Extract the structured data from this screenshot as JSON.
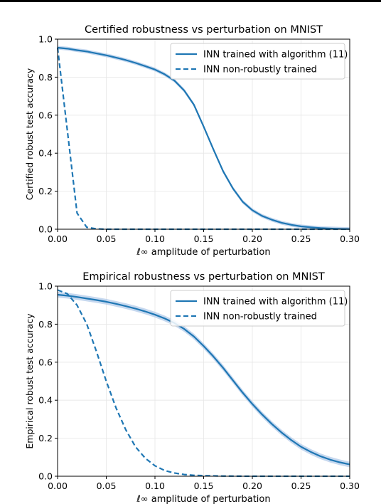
{
  "colors": {
    "line": "#1f77b4",
    "band": "#aec7e8",
    "grid": "#e6e6e6",
    "axis": "#000000"
  },
  "chart_data": [
    {
      "type": "line",
      "title": "Certified robustness vs perturbation on MNIST",
      "xlabel": "ℓ∞ amplitude of perturbation",
      "ylabel": "Certified robust test accuracy",
      "xlim": [
        0.0,
        0.3
      ],
      "ylim": [
        0.0,
        1.0
      ],
      "xticks": [
        "0.00",
        "0.05",
        "0.10",
        "0.15",
        "0.20",
        "0.25",
        "0.30"
      ],
      "yticks": [
        "0.0",
        "0.2",
        "0.4",
        "0.6",
        "0.8",
        "1.0"
      ],
      "grid": true,
      "legend_position": "top-right",
      "series": [
        {
          "name": "INN trained with algorithm (11)",
          "style": "solid",
          "band": 0.01,
          "x": [
            0.0,
            0.01,
            0.02,
            0.03,
            0.04,
            0.05,
            0.06,
            0.07,
            0.08,
            0.09,
            0.1,
            0.11,
            0.12,
            0.13,
            0.14,
            0.15,
            0.16,
            0.17,
            0.18,
            0.19,
            0.2,
            0.21,
            0.22,
            0.23,
            0.24,
            0.25,
            0.26,
            0.27,
            0.28,
            0.29,
            0.3
          ],
          "y": [
            0.955,
            0.95,
            0.942,
            0.935,
            0.925,
            0.915,
            0.903,
            0.89,
            0.875,
            0.858,
            0.84,
            0.815,
            0.782,
            0.73,
            0.655,
            0.54,
            0.42,
            0.305,
            0.215,
            0.145,
            0.1,
            0.07,
            0.05,
            0.034,
            0.023,
            0.015,
            0.01,
            0.006,
            0.004,
            0.002,
            0.001
          ]
        },
        {
          "name": "INN non-robustly trained",
          "style": "dashed",
          "x": [
            0.0,
            0.01,
            0.02,
            0.03,
            0.04,
            0.05,
            0.1,
            0.15,
            0.2,
            0.25,
            0.3
          ],
          "y": [
            0.955,
            0.52,
            0.085,
            0.01,
            0.002,
            0.0,
            0.0,
            0.0,
            0.0,
            0.0,
            0.0
          ]
        }
      ]
    },
    {
      "type": "line",
      "title": "Empirical robustness vs perturbation on MNIST",
      "xlabel": "ℓ∞ amplitude of perturbation",
      "ylabel": "Empirical robust test accuracy",
      "xlim": [
        0.0,
        0.3
      ],
      "ylim": [
        0.0,
        1.0
      ],
      "xticks": [
        "0.00",
        "0.05",
        "0.10",
        "0.15",
        "0.20",
        "0.25",
        "0.30"
      ],
      "yticks": [
        "0.0",
        "0.2",
        "0.4",
        "0.6",
        "0.8",
        "1.0"
      ],
      "grid": true,
      "legend_position": "top-right",
      "series": [
        {
          "name": "INN trained with algorithm (11)",
          "style": "solid",
          "band": 0.015,
          "x": [
            0.0,
            0.01,
            0.02,
            0.03,
            0.04,
            0.05,
            0.06,
            0.07,
            0.08,
            0.09,
            0.1,
            0.11,
            0.12,
            0.13,
            0.14,
            0.15,
            0.16,
            0.17,
            0.18,
            0.19,
            0.2,
            0.21,
            0.22,
            0.23,
            0.24,
            0.25,
            0.26,
            0.27,
            0.28,
            0.29,
            0.3
          ],
          "y": [
            0.955,
            0.95,
            0.943,
            0.935,
            0.927,
            0.918,
            0.907,
            0.895,
            0.882,
            0.867,
            0.85,
            0.83,
            0.806,
            0.775,
            0.735,
            0.685,
            0.63,
            0.57,
            0.505,
            0.44,
            0.38,
            0.325,
            0.275,
            0.23,
            0.19,
            0.155,
            0.128,
            0.105,
            0.087,
            0.073,
            0.062
          ]
        },
        {
          "name": "INN non-robustly trained",
          "style": "dashed",
          "x": [
            0.0,
            0.01,
            0.02,
            0.03,
            0.04,
            0.05,
            0.06,
            0.07,
            0.08,
            0.09,
            0.1,
            0.11,
            0.12,
            0.13,
            0.14,
            0.15,
            0.17,
            0.2,
            0.25,
            0.3
          ],
          "y": [
            0.98,
            0.96,
            0.9,
            0.8,
            0.655,
            0.5,
            0.36,
            0.245,
            0.155,
            0.095,
            0.055,
            0.03,
            0.017,
            0.009,
            0.005,
            0.003,
            0.001,
            0.0,
            0.0,
            0.0
          ]
        }
      ]
    }
  ]
}
